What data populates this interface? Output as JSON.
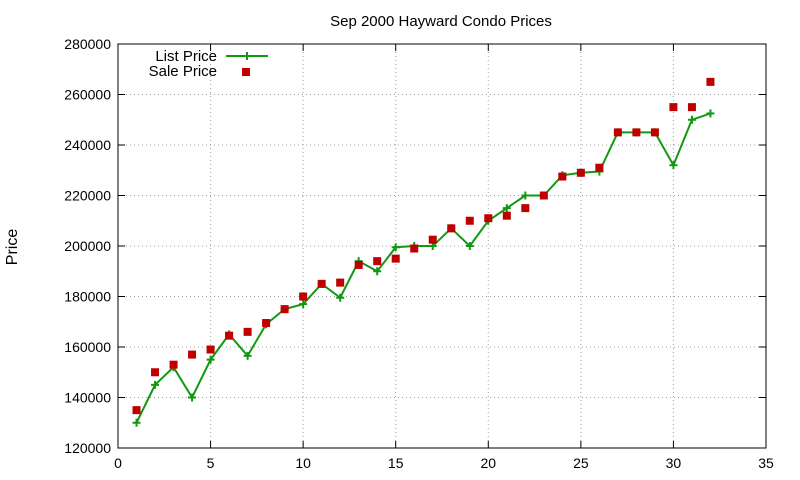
{
  "chart_data": {
    "type": "line",
    "title": "Sep 2000 Hayward Condo Prices",
    "xlabel": "",
    "ylabel": "Price",
    "xlim": [
      0,
      35
    ],
    "ylim": [
      120000,
      280000
    ],
    "xticks": [
      0,
      5,
      10,
      15,
      20,
      25,
      30,
      35
    ],
    "yticks": [
      120000,
      140000,
      160000,
      180000,
      200000,
      220000,
      240000,
      260000,
      280000
    ],
    "grid": true,
    "legend_position": "top-left",
    "series": [
      {
        "name": "List Price",
        "style": "line-with-plus-markers",
        "color": "#119911",
        "x": [
          1,
          2,
          3,
          4,
          5,
          6,
          7,
          8,
          9,
          10,
          11,
          12,
          13,
          14,
          15,
          16,
          17,
          18,
          19,
          20,
          21,
          22,
          23,
          24,
          25,
          26,
          27,
          28,
          29,
          30,
          31,
          32
        ],
        "values": [
          130000,
          145000,
          152000,
          140000,
          155000,
          165000,
          156500,
          169000,
          175000,
          177000,
          185000,
          179500,
          194000,
          190000,
          199500,
          200000,
          200000,
          207000,
          200000,
          210000,
          215000,
          220000,
          220000,
          228000,
          229000,
          229500,
          245000,
          245000,
          245000,
          232000,
          250000,
          252500
        ]
      },
      {
        "name": "Sale Price",
        "style": "square-markers",
        "color": "#c00000",
        "x": [
          1,
          2,
          3,
          4,
          5,
          6,
          7,
          8,
          9,
          10,
          11,
          12,
          13,
          14,
          15,
          16,
          17,
          18,
          19,
          20,
          21,
          22,
          23,
          24,
          25,
          26,
          27,
          28,
          29,
          30,
          31,
          32
        ],
        "values": [
          135000,
          150000,
          153000,
          157000,
          159000,
          164500,
          166000,
          169500,
          175000,
          180000,
          185000,
          185500,
          192500,
          194000,
          195000,
          199000,
          202500,
          207000,
          210000,
          211000,
          212000,
          215000,
          220000,
          227500,
          229000,
          231000,
          245000,
          245000,
          245000,
          255000,
          255000,
          265000
        ]
      }
    ]
  }
}
